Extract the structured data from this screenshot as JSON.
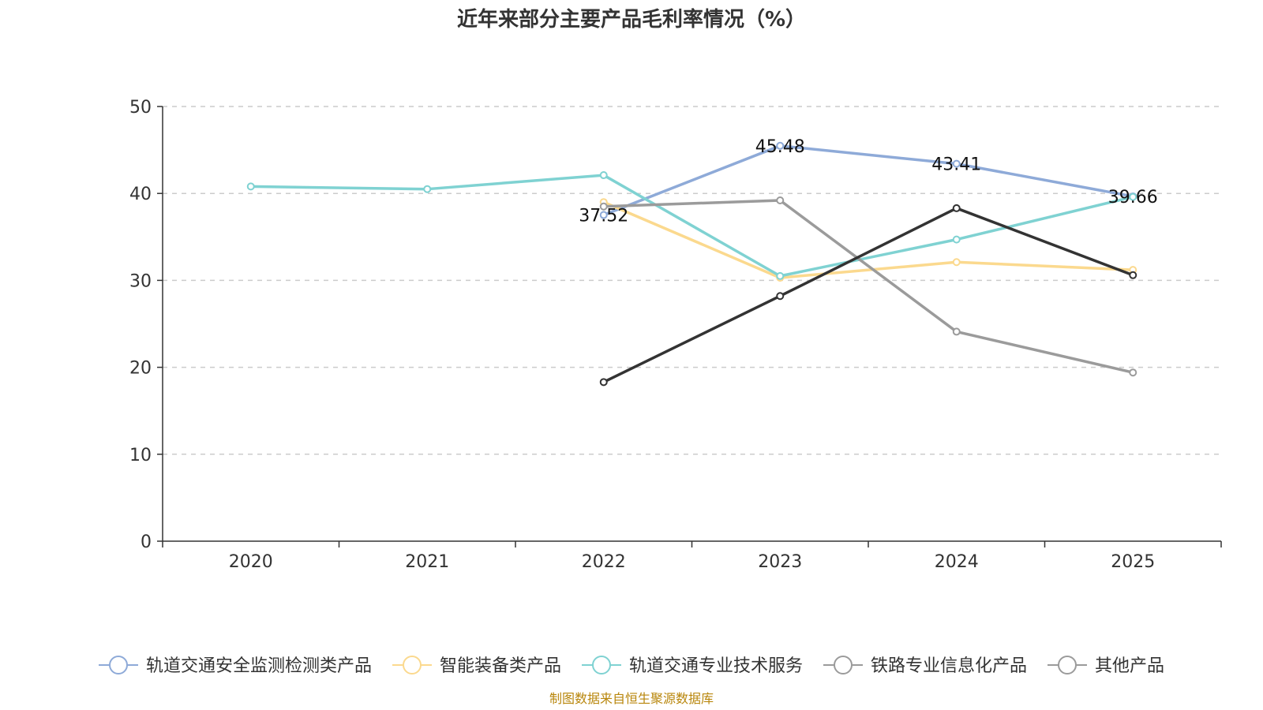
{
  "chart_data": {
    "type": "line",
    "title": "近年来部分主要产品毛利率情况（%）",
    "xlabel": "",
    "ylabel": "",
    "ylim": [
      0,
      50
    ],
    "yticks": [
      0,
      10,
      20,
      30,
      40,
      50
    ],
    "grid": true,
    "legend_position": "bottom",
    "categories": [
      "2020",
      "2021",
      "2022",
      "2023",
      "2024",
      "2025"
    ],
    "series": [
      {
        "name": "轨道交通安全监测检测类产品",
        "color": "#8eaad8",
        "values": [
          null,
          null,
          37.52,
          45.48,
          43.41,
          39.66
        ],
        "labels": [
          null,
          null,
          "37.52",
          "45.48",
          "43.41",
          "39.66"
        ]
      },
      {
        "name": "智能装备类产品",
        "color": "#fbd98e",
        "values": [
          null,
          null,
          39.0,
          30.3,
          32.1,
          31.2
        ]
      },
      {
        "name": "轨道交通专业技术服务",
        "color": "#7fd2d2",
        "values": [
          40.8,
          40.5,
          42.1,
          30.5,
          34.7,
          39.6
        ]
      },
      {
        "name": "铁路专业信息化产品",
        "color": "#9b9b9b",
        "values": [
          null,
          null,
          38.5,
          39.2,
          24.1,
          19.4
        ]
      },
      {
        "name": "其他产品",
        "color": "#333333",
        "legend_color": "#9b9b9b",
        "values": [
          null,
          null,
          18.3,
          28.2,
          38.3,
          30.6
        ]
      }
    ],
    "source": "制图数据来自恒生聚源数据库"
  }
}
